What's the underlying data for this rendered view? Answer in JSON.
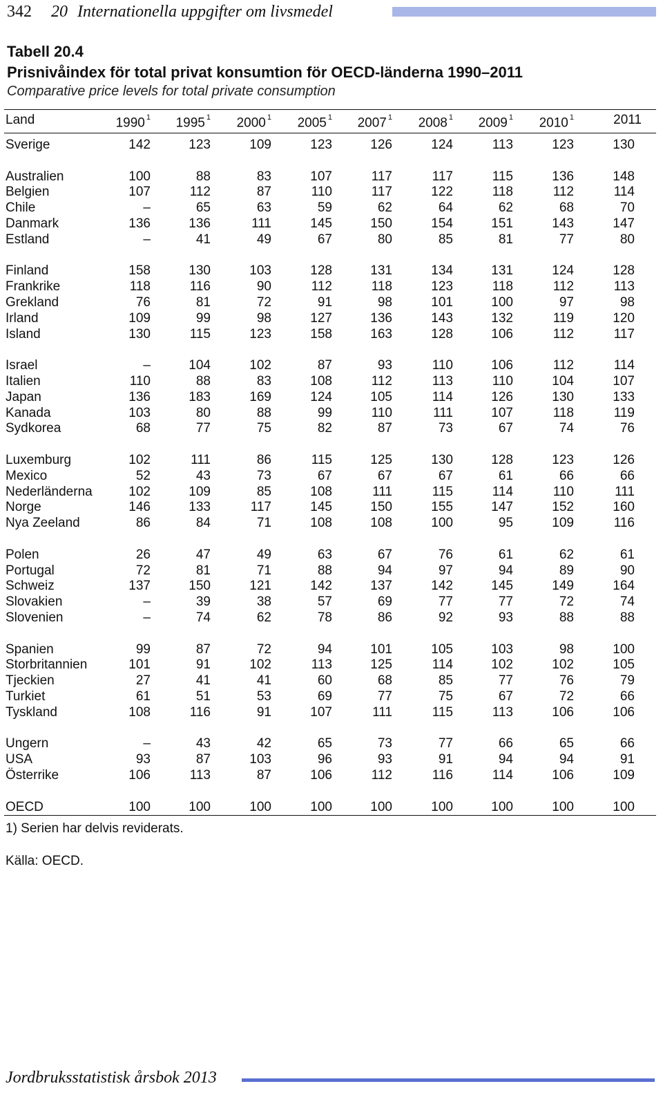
{
  "header": {
    "page_number": "342",
    "chapter_number": "20",
    "chapter_title": "Internationella uppgifter om livsmedel"
  },
  "table": {
    "label": "Tabell 20.4",
    "title": "Prisnivåindex för total privat konsumtion för OECD-länderna 1990–2011",
    "subtitle": "Comparative price levels for total private consumption",
    "land_header": "Land",
    "years": [
      {
        "year": "1990",
        "note": "1"
      },
      {
        "year": "1995",
        "note": "1"
      },
      {
        "year": "2000",
        "note": "1"
      },
      {
        "year": "2005",
        "note": "1"
      },
      {
        "year": "2007",
        "note": "1"
      },
      {
        "year": "2008",
        "note": "1"
      },
      {
        "year": "2009",
        "note": "1"
      },
      {
        "year": "2010",
        "note": "1"
      },
      {
        "year": "2011",
        "note": ""
      }
    ],
    "groups": [
      [
        {
          "land": "Sverige",
          "values": [
            "142",
            "123",
            "109",
            "123",
            "126",
            "124",
            "113",
            "123",
            "130"
          ]
        }
      ],
      [
        {
          "land": "Australien",
          "values": [
            "100",
            "88",
            "83",
            "107",
            "117",
            "117",
            "115",
            "136",
            "148"
          ]
        },
        {
          "land": "Belgien",
          "values": [
            "107",
            "112",
            "87",
            "110",
            "117",
            "122",
            "118",
            "112",
            "114"
          ]
        },
        {
          "land": "Chile",
          "values": [
            "–",
            "65",
            "63",
            "59",
            "62",
            "64",
            "62",
            "68",
            "70"
          ]
        },
        {
          "land": "Danmark",
          "values": [
            "136",
            "136",
            "111",
            "145",
            "150",
            "154",
            "151",
            "143",
            "147"
          ]
        },
        {
          "land": "Estland",
          "values": [
            "–",
            "41",
            "49",
            "67",
            "80",
            "85",
            "81",
            "77",
            "80"
          ]
        }
      ],
      [
        {
          "land": "Finland",
          "values": [
            "158",
            "130",
            "103",
            "128",
            "131",
            "134",
            "131",
            "124",
            "128"
          ]
        },
        {
          "land": "Frankrike",
          "values": [
            "118",
            "116",
            "90",
            "112",
            "118",
            "123",
            "118",
            "112",
            "113"
          ]
        },
        {
          "land": "Grekland",
          "values": [
            "76",
            "81",
            "72",
            "91",
            "98",
            "101",
            "100",
            "97",
            "98"
          ]
        },
        {
          "land": "Irland",
          "values": [
            "109",
            "99",
            "98",
            "127",
            "136",
            "143",
            "132",
            "119",
            "120"
          ]
        },
        {
          "land": "Island",
          "values": [
            "130",
            "115",
            "123",
            "158",
            "163",
            "128",
            "106",
            "112",
            "117"
          ]
        }
      ],
      [
        {
          "land": "Israel",
          "values": [
            "–",
            "104",
            "102",
            "87",
            "93",
            "110",
            "106",
            "112",
            "114"
          ]
        },
        {
          "land": "Italien",
          "values": [
            "110",
            "88",
            "83",
            "108",
            "112",
            "113",
            "110",
            "104",
            "107"
          ]
        },
        {
          "land": "Japan",
          "values": [
            "136",
            "183",
            "169",
            "124",
            "105",
            "114",
            "126",
            "130",
            "133"
          ]
        },
        {
          "land": "Kanada",
          "values": [
            "103",
            "80",
            "88",
            "99",
            "110",
            "111",
            "107",
            "118",
            "119"
          ]
        },
        {
          "land": "Sydkorea",
          "values": [
            "68",
            "77",
            "75",
            "82",
            "87",
            "73",
            "67",
            "74",
            "76"
          ]
        }
      ],
      [
        {
          "land": "Luxemburg",
          "values": [
            "102",
            "111",
            "86",
            "115",
            "125",
            "130",
            "128",
            "123",
            "126"
          ]
        },
        {
          "land": "Mexico",
          "values": [
            "52",
            "43",
            "73",
            "67",
            "67",
            "67",
            "61",
            "66",
            "66"
          ]
        },
        {
          "land": "Nederländerna",
          "values": [
            "102",
            "109",
            "85",
            "108",
            "111",
            "115",
            "114",
            "110",
            "111"
          ]
        },
        {
          "land": "Norge",
          "values": [
            "146",
            "133",
            "117",
            "145",
            "150",
            "155",
            "147",
            "152",
            "160"
          ]
        },
        {
          "land": "Nya Zeeland",
          "values": [
            "86",
            "84",
            "71",
            "108",
            "108",
            "100",
            "95",
            "109",
            "116"
          ]
        }
      ],
      [
        {
          "land": "Polen",
          "values": [
            "26",
            "47",
            "49",
            "63",
            "67",
            "76",
            "61",
            "62",
            "61"
          ]
        },
        {
          "land": "Portugal",
          "values": [
            "72",
            "81",
            "71",
            "88",
            "94",
            "97",
            "94",
            "89",
            "90"
          ]
        },
        {
          "land": "Schweiz",
          "values": [
            "137",
            "150",
            "121",
            "142",
            "137",
            "142",
            "145",
            "149",
            "164"
          ]
        },
        {
          "land": "Slovakien",
          "values": [
            "–",
            "39",
            "38",
            "57",
            "69",
            "77",
            "77",
            "72",
            "74"
          ]
        },
        {
          "land": "Slovenien",
          "values": [
            "–",
            "74",
            "62",
            "78",
            "86",
            "92",
            "93",
            "88",
            "88"
          ]
        }
      ],
      [
        {
          "land": "Spanien",
          "values": [
            "99",
            "87",
            "72",
            "94",
            "101",
            "105",
            "103",
            "98",
            "100"
          ]
        },
        {
          "land": "Storbritannien",
          "values": [
            "101",
            "91",
            "102",
            "113",
            "125",
            "114",
            "102",
            "102",
            "105"
          ]
        },
        {
          "land": "Tjeckien",
          "values": [
            "27",
            "41",
            "41",
            "60",
            "68",
            "85",
            "77",
            "76",
            "79"
          ]
        },
        {
          "land": "Turkiet",
          "values": [
            "61",
            "51",
            "53",
            "69",
            "77",
            "75",
            "67",
            "72",
            "66"
          ]
        },
        {
          "land": "Tyskland",
          "values": [
            "108",
            "116",
            "91",
            "107",
            "111",
            "115",
            "113",
            "106",
            "106"
          ]
        }
      ],
      [
        {
          "land": "Ungern",
          "values": [
            "–",
            "43",
            "42",
            "65",
            "73",
            "77",
            "66",
            "65",
            "66"
          ]
        },
        {
          "land": "USA",
          "values": [
            "93",
            "87",
            "103",
            "96",
            "93",
            "91",
            "94",
            "94",
            "91"
          ]
        },
        {
          "land": "Österrike",
          "values": [
            "106",
            "113",
            "87",
            "106",
            "112",
            "116",
            "114",
            "106",
            "109"
          ]
        }
      ],
      [
        {
          "land": "OECD",
          "values": [
            "100",
            "100",
            "100",
            "100",
            "100",
            "100",
            "100",
            "100",
            "100"
          ]
        }
      ]
    ]
  },
  "footnote": "1) Serien har delvis reviderats.",
  "source": "Källa: OECD.",
  "footer": {
    "publication": "Jordbruksstatistisk årsbok 2013"
  }
}
